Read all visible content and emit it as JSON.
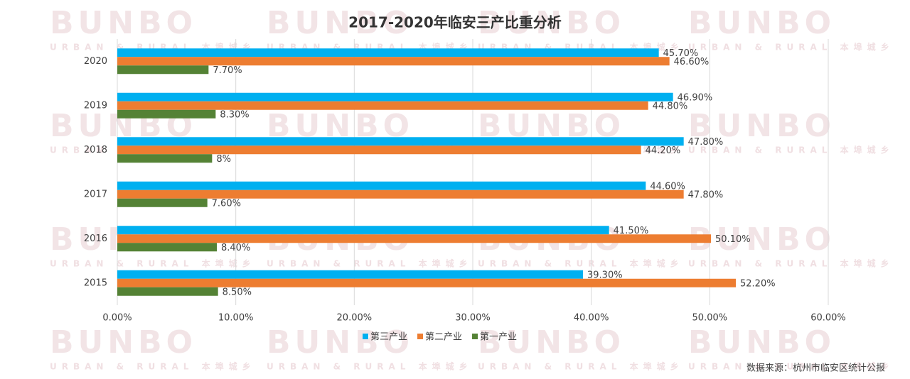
{
  "chart_data": {
    "type": "bar",
    "orientation": "horizontal",
    "title": "2017-2020年临安三产比重分析",
    "watermark": "BUNBO",
    "watermark_subtitle": "URBAN & RURAL 本埠城乡",
    "source": "数据来源：杭州市临安区统计公报",
    "categories": [
      "2020",
      "2019",
      "2018",
      "2017",
      "2016",
      "2015"
    ],
    "series": [
      {
        "name": "第三产业",
        "color": "#00b0f0",
        "values": [
          45.7,
          46.9,
          47.8,
          44.6,
          41.5,
          39.3
        ],
        "value_labels": [
          "45.70%",
          "46.90%",
          "47.80%",
          "44.60%",
          "41.50%",
          "39.30%"
        ]
      },
      {
        "name": "第二产业",
        "color": "#ed7d31",
        "values": [
          46.6,
          44.8,
          44.2,
          47.8,
          50.1,
          52.2
        ],
        "value_labels": [
          "46.60%",
          "44.80%",
          "44.20%",
          "47.80%",
          "50.10%",
          "52.20%"
        ]
      },
      {
        "name": "第一产业",
        "color": "#548235",
        "values": [
          7.7,
          8.3,
          8,
          7.6,
          8.4,
          8.5
        ],
        "value_labels": [
          "7.70%",
          "8.30%",
          "8%",
          "7.60%",
          "8.40%",
          "8.50%"
        ]
      }
    ],
    "xlim": [
      0,
      60
    ],
    "xticks": [
      {
        "value": 0,
        "label": "0.00%"
      },
      {
        "value": 10,
        "label": "10.00%"
      },
      {
        "value": 20,
        "label": "20.00%"
      },
      {
        "value": 30,
        "label": "30.00%"
      },
      {
        "value": 40,
        "label": "40.00%"
      },
      {
        "value": 50,
        "label": "50.00%"
      },
      {
        "value": 60,
        "label": "60.00%"
      }
    ],
    "grid": true,
    "legend": "bottom"
  }
}
